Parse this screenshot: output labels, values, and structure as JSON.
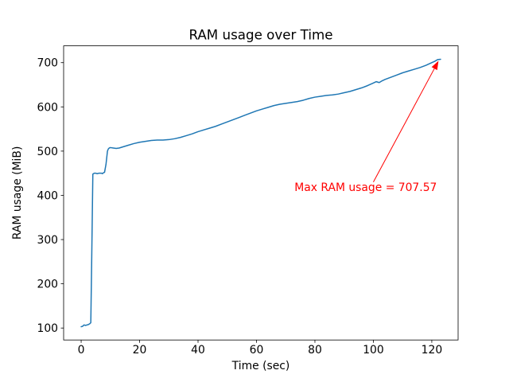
{
  "chart_data": {
    "type": "line",
    "title": "RAM usage over Time",
    "xlabel": "Time (sec)",
    "ylabel": "RAM usage (MiB)",
    "xlim": [
      -6,
      129
    ],
    "ylim": [
      73,
      738
    ],
    "xticks": [
      0,
      20,
      40,
      60,
      80,
      100,
      120
    ],
    "yticks": [
      100,
      200,
      300,
      400,
      500,
      600,
      700
    ],
    "grid": false,
    "legend": "none",
    "line_color": "#1f77b4",
    "series": [
      {
        "name": "RAM usage (MiB)",
        "x": [
          0,
          0.5,
          1,
          1.5,
          2,
          2.5,
          3,
          3.3,
          3.6,
          4,
          4.5,
          5,
          5.5,
          6,
          6.5,
          7,
          7.3,
          7.6,
          8,
          8.5,
          9,
          9.3,
          9.6,
          10,
          11,
          12,
          13,
          14,
          16,
          18,
          20,
          22,
          24,
          26,
          28,
          30,
          32,
          34,
          36,
          38,
          40,
          42,
          44,
          46,
          48,
          50,
          52,
          54,
          56,
          58,
          60,
          62,
          64,
          66,
          68,
          70,
          72,
          74,
          76,
          78,
          80,
          82,
          84,
          86,
          88,
          90,
          92,
          94,
          96,
          98,
          100,
          101,
          102,
          103,
          104,
          106,
          108,
          110,
          112,
          114,
          116,
          118,
          120,
          121,
          122,
          123
        ],
        "y": [
          103,
          104,
          107,
          106,
          107,
          108,
          110,
          112,
          250,
          448,
          450,
          450,
          449,
          450,
          450,
          450,
          449,
          451,
          452,
          470,
          500,
          505,
          507,
          508,
          507,
          506,
          507,
          509,
          513,
          517,
          520,
          522,
          524,
          525,
          525,
          526,
          528,
          531,
          535,
          539,
          544,
          548,
          552,
          556,
          561,
          566,
          571,
          576,
          581,
          586,
          591,
          595,
          599,
          603,
          606,
          608,
          610,
          612,
          615,
          619,
          622,
          624,
          626,
          627,
          629,
          632,
          635,
          639,
          643,
          648,
          654,
          657,
          655,
          659,
          662,
          667,
          672,
          677,
          681,
          685,
          689,
          694,
          700,
          703,
          707,
          707.57
        ]
      }
    ],
    "annotation": {
      "text": "Max RAM usage = 707.57",
      "color": "#ff0000",
      "max_value": 707.57,
      "text_xy": [
        73,
        410
      ],
      "arrow_tail": [
        100,
        430
      ],
      "arrow_head": [
        122.3,
        704
      ]
    }
  }
}
